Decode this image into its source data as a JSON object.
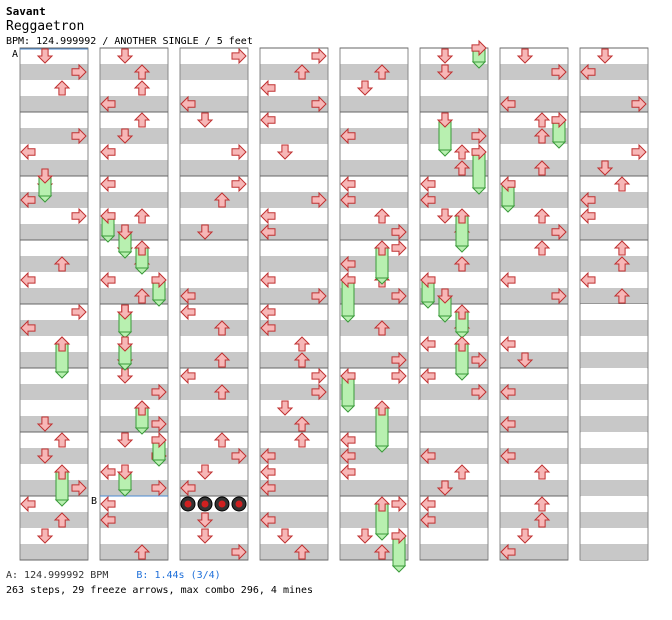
{
  "header": {
    "artist": "Savant",
    "song": "Reggaetron",
    "info": "BPM: 124.999992 / ANOTHER SINGLE / 5 feet"
  },
  "markers": {
    "a": "A",
    "b": "B"
  },
  "footer": {
    "bpm_a": "A: 124.999992 BPM",
    "bpm_b": "B: 1.44s (3/4)",
    "summary": "263 steps, 29 freeze arrows, max combo 296, 4 mines"
  },
  "colors": {
    "red_arrow": "#f7b7b7",
    "red_outline": "#c03030",
    "blue_arrow": "#7ab8f0",
    "blue_outline": "#2060b0",
    "freeze": "#b8f0b0",
    "freeze_outline": "#3a9a3a",
    "stripe": "#c8c8c8",
    "bpm_change_line": "#4a8ad0"
  },
  "chart_data": {
    "type": "table",
    "columns": 8,
    "lanes": [
      "left",
      "down",
      "up",
      "right"
    ],
    "mines_measure_column": 2,
    "notes_description": "stepchart arrows"
  }
}
